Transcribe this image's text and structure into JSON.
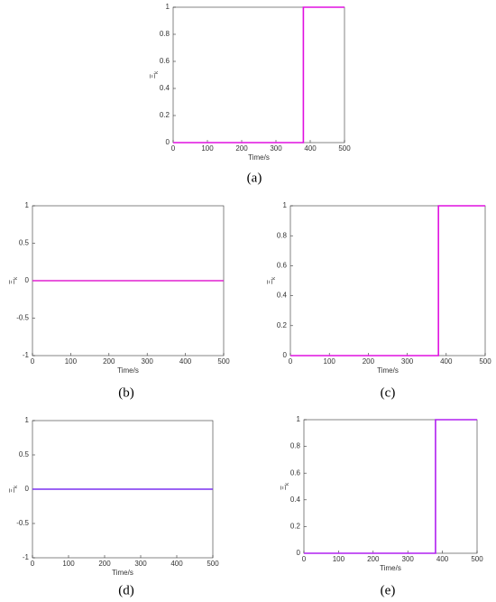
{
  "chart_data": [
    {
      "type": "line",
      "label": "(a)",
      "xlabel": "Time/s",
      "ylabel": "Ξ",
      "ylabel_subscript": "k",
      "xlim": [
        0,
        500
      ],
      "xticks": [
        0,
        100,
        200,
        300,
        400,
        500
      ],
      "ylim": [
        0,
        1
      ],
      "yticks": [
        0,
        0.2,
        0.4,
        0.6,
        0.8,
        1
      ],
      "series": [
        {
          "color": "#e010e0",
          "x": [
            0,
            380,
            380,
            500
          ],
          "values": [
            0,
            0,
            1,
            1
          ]
        }
      ]
    },
    {
      "type": "line",
      "label": "(b)",
      "xlabel": "Time/s",
      "ylabel": "Ξ",
      "ylabel_subscript": "k",
      "xlim": [
        0,
        500
      ],
      "xticks": [
        0,
        100,
        200,
        300,
        400,
        500
      ],
      "ylim": [
        -1,
        1
      ],
      "yticks": [
        -1,
        -0.5,
        0,
        0.5,
        1
      ],
      "series": [
        {
          "color": "#e020d0",
          "x": [
            0,
            500
          ],
          "values": [
            0,
            0
          ]
        }
      ]
    },
    {
      "type": "line",
      "label": "(c)",
      "xlabel": "Time/s",
      "ylabel": "Ξ",
      "ylabel_subscript": "k",
      "xlim": [
        0,
        500
      ],
      "xticks": [
        0,
        100,
        200,
        300,
        400,
        500
      ],
      "ylim": [
        0,
        1
      ],
      "yticks": [
        0,
        0.2,
        0.4,
        0.6,
        0.8,
        1
      ],
      "series": [
        {
          "color": "#e010e0",
          "x": [
            0,
            380,
            380,
            500
          ],
          "values": [
            0,
            0,
            1,
            1
          ]
        }
      ]
    },
    {
      "type": "line",
      "label": "(d)",
      "xlabel": "Time/s",
      "ylabel": "Ξ",
      "ylabel_subscript": "k",
      "xlim": [
        0,
        500
      ],
      "xticks": [
        0,
        100,
        200,
        300,
        400,
        500
      ],
      "ylim": [
        -1,
        1
      ],
      "yticks": [
        -1,
        -0.5,
        0,
        0.5,
        1
      ],
      "series": [
        {
          "color": "#7a30f0",
          "x": [
            0,
            500
          ],
          "values": [
            0,
            0
          ]
        }
      ]
    },
    {
      "type": "line",
      "label": "(e)",
      "xlabel": "Time/s",
      "ylabel": "Ξ",
      "ylabel_subscript": "k",
      "xlim": [
        0,
        500
      ],
      "xticks": [
        0,
        100,
        200,
        300,
        400,
        500
      ],
      "ylim": [
        0,
        1
      ],
      "yticks": [
        0,
        0.2,
        0.4,
        0.6,
        0.8,
        1
      ],
      "series": [
        {
          "color": "#b020f0",
          "x": [
            0,
            380,
            380,
            500
          ],
          "values": [
            0,
            0,
            1,
            1
          ]
        }
      ]
    }
  ]
}
